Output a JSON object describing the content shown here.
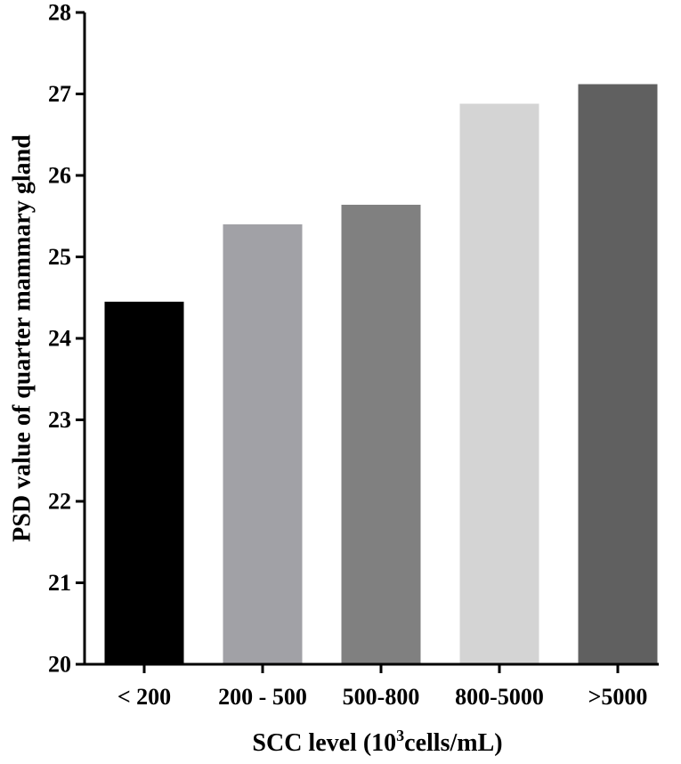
{
  "chart_data": {
    "type": "bar",
    "categories": [
      "< 200",
      "200 - 500",
      "500-800",
      "800-5000",
      ">5000"
    ],
    "values": [
      24.45,
      25.4,
      25.64,
      26.88,
      27.12
    ],
    "colors": [
      "#000000",
      "#a1a1a6",
      "#808080",
      "#d4d4d4",
      "#606060"
    ],
    "title": "",
    "ylabel": "PSD value of quarter mammary gland",
    "xlabel": {
      "prefix": "SCC level (10",
      "superscript": "3",
      "suffix": "cells/mL)"
    },
    "ylim": [
      20,
      28
    ],
    "yticks": [
      20,
      21,
      22,
      23,
      24,
      25,
      26,
      27,
      28
    ],
    "grid": false,
    "legend": "none"
  }
}
